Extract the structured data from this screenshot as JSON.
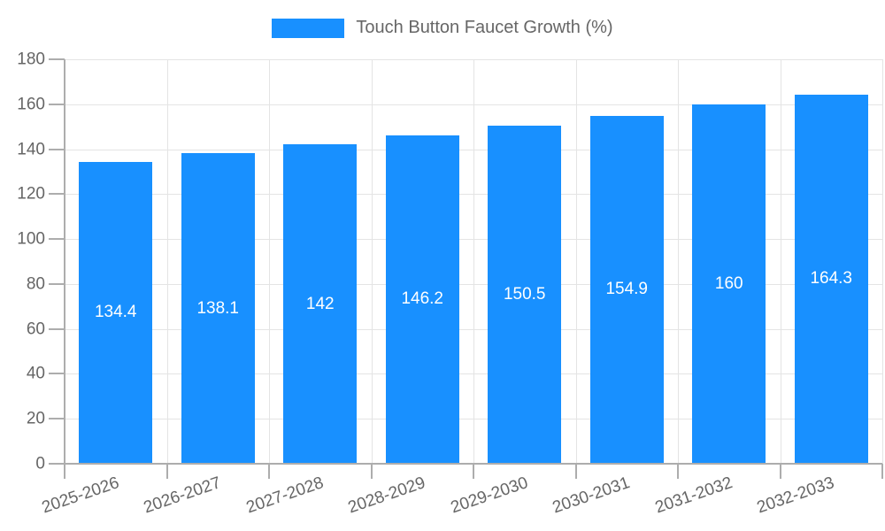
{
  "legend": {
    "label": "Touch Button Faucet Growth (%)"
  },
  "chart_data": {
    "type": "bar",
    "title": "Touch Button Faucet Growth (%)",
    "categories": [
      "2025-2026",
      "2026-2027",
      "2027-2028",
      "2028-2029",
      "2029-2030",
      "2030-2031",
      "2031-2032",
      "2032-2033"
    ],
    "values": [
      134.4,
      138.1,
      142,
      146.2,
      150.5,
      154.9,
      160,
      164.3
    ],
    "xlabel": "",
    "ylabel": "",
    "ylim": [
      0,
      180
    ],
    "ytick_step": 20,
    "grid": true,
    "legend_position": "top",
    "bar_color": "#1890FF",
    "value_label_color": "#FFFFFF",
    "axis_color": "#ADADAD",
    "grid_color": "#E4E4E4",
    "text_color": "#666666"
  }
}
